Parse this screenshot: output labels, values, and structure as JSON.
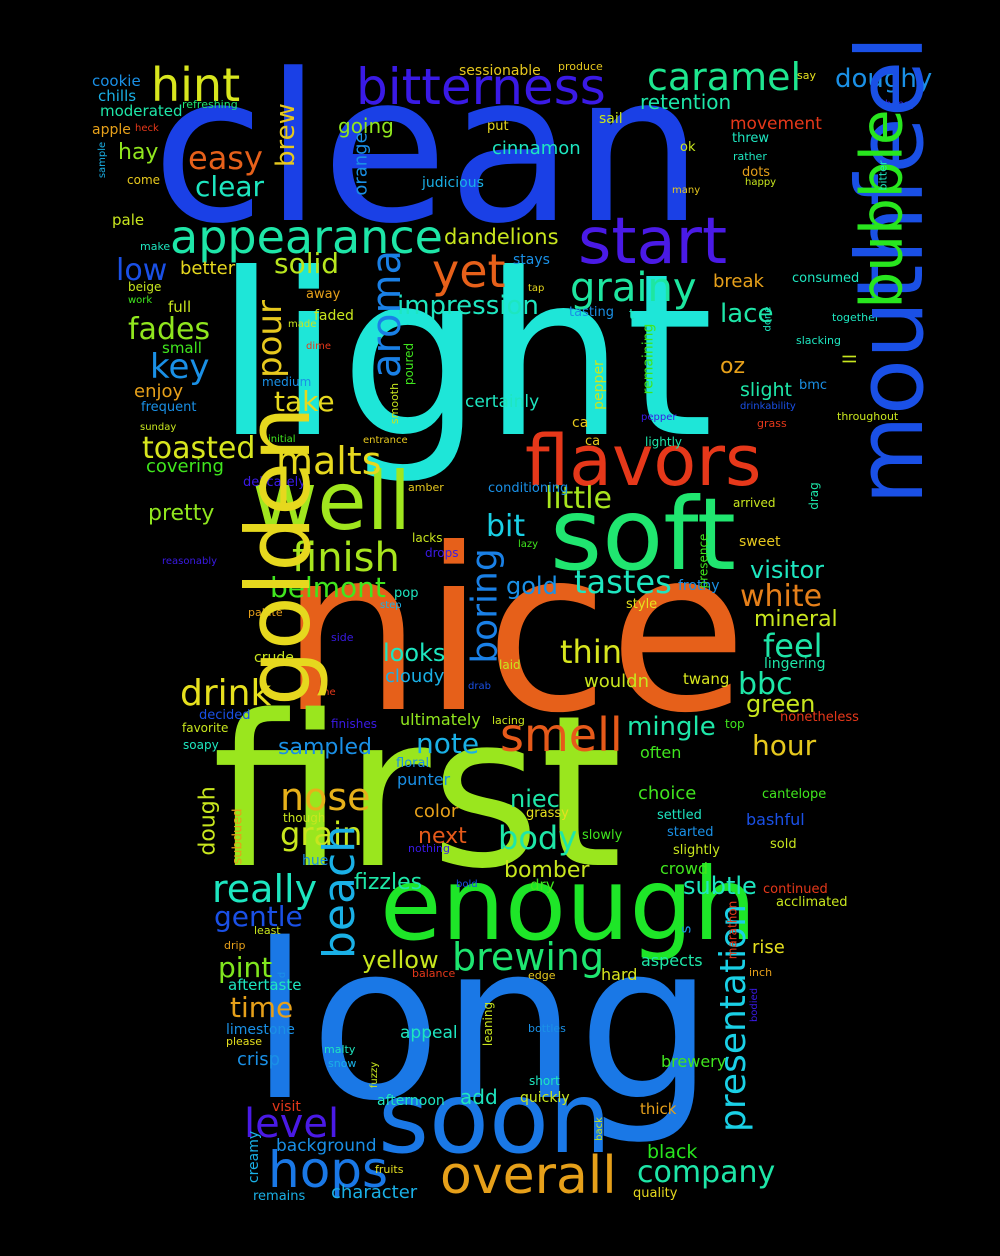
{
  "words": [
    {
      "text": "clean",
      "color": "#1a40e6"
    },
    {
      "text": "light",
      "color": "#1ee6d8"
    },
    {
      "text": "nice",
      "color": "#e6601a"
    },
    {
      "text": "first",
      "color": "#9ae61e"
    },
    {
      "text": "long",
      "color": "#1a78e6"
    },
    {
      "text": "enough",
      "color": "#1ee628"
    },
    {
      "text": "soft",
      "color": "#20e670"
    },
    {
      "text": "soon",
      "color": "#1a78e6"
    },
    {
      "text": "mouthfeel",
      "color": "#1a50e6"
    },
    {
      "text": "well",
      "color": "#e6d81e"
    },
    {
      "text": "golden",
      "color": "#a0e61e"
    },
    {
      "text": "flavors",
      "color": "#e6381a"
    },
    {
      "text": "bubble",
      "color": "#28e61e"
    },
    {
      "text": "start",
      "color": "#4a1ae6"
    },
    {
      "text": "bitterness",
      "color": "#3a1ae6"
    },
    {
      "text": "appearance",
      "color": "#1ee6a8"
    },
    {
      "text": "overall",
      "color": "#e6a01a"
    },
    {
      "text": "hops",
      "color": "#1a78e6"
    },
    {
      "text": "smell",
      "color": "#e65a1a"
    },
    {
      "text": "beach",
      "color": "#1ab0e6"
    },
    {
      "text": "brewing",
      "color": "#1ee670"
    },
    {
      "text": "presentation",
      "color": "#1ad0e6"
    },
    {
      "text": "caramel",
      "color": "#1ee690"
    },
    {
      "text": "hint",
      "color": "#d8e61e"
    },
    {
      "text": "aroma",
      "color": "#1a80e6"
    },
    {
      "text": "yet",
      "color": "#e6601a"
    },
    {
      "text": "grainy",
      "color": "#1ee6a0"
    },
    {
      "text": "finish",
      "color": "#a8e61e"
    },
    {
      "text": "malts",
      "color": "#e6d81e"
    },
    {
      "text": "boring",
      "color": "#1a80e6"
    },
    {
      "text": "drink",
      "color": "#e6e01e"
    },
    {
      "text": "nose",
      "color": "#e6b01a"
    },
    {
      "text": "really",
      "color": "#1ee6c0"
    },
    {
      "text": "level",
      "color": "#4a1ae6"
    },
    {
      "text": "company",
      "color": "#1ee6a8"
    },
    {
      "text": "toasted",
      "color": "#d8e61e"
    },
    {
      "text": "easy",
      "color": "#e6601a"
    },
    {
      "text": "clear",
      "color": "#1ee6c0"
    },
    {
      "text": "doughy",
      "color": "#1a90e6"
    },
    {
      "text": "low",
      "color": "#1a50e6"
    },
    {
      "text": "solid",
      "color": "#b8e61e"
    },
    {
      "text": "fades",
      "color": "#90e61e"
    },
    {
      "text": "key",
      "color": "#1a90e6"
    },
    {
      "text": "take",
      "color": "#e6d81e"
    },
    {
      "text": "tastes",
      "color": "#1ee6c0"
    },
    {
      "text": "thin",
      "color": "#d8e61e"
    },
    {
      "text": "belmont",
      "color": "#40e61e"
    },
    {
      "text": "white",
      "color": "#e6801a"
    },
    {
      "text": "feel",
      "color": "#1ee6a8"
    },
    {
      "text": "bbc",
      "color": "#1ee6a8"
    },
    {
      "text": "hour",
      "color": "#e6c81e"
    },
    {
      "text": "note",
      "color": "#1ab0e6"
    },
    {
      "text": "grain",
      "color": "#c8e61e"
    },
    {
      "text": "body",
      "color": "#1ee6a8"
    },
    {
      "text": "pint",
      "color": "#80e61e"
    },
    {
      "text": "time",
      "color": "#e6a01a"
    },
    {
      "text": "gentle",
      "color": "#1a50e6"
    },
    {
      "text": "green",
      "color": "#c8e61e"
    },
    {
      "text": "little",
      "color": "#a8e61e"
    },
    {
      "text": "bit",
      "color": "#1ad0e6"
    },
    {
      "text": "impression",
      "color": "#1ee6c0"
    },
    {
      "text": "pour",
      "color": "#e6c81e"
    },
    {
      "text": "brew",
      "color": "#e6c81e"
    },
    {
      "text": "retention",
      "color": "#1ee6a8"
    },
    {
      "text": "dandelions",
      "color": "#c8e61e"
    },
    {
      "text": "cinnamon",
      "color": "#1ee6c0"
    },
    {
      "text": "going",
      "color": "#90e61e"
    },
    {
      "text": "lace",
      "color": "#1ee6a8"
    },
    {
      "text": "oz",
      "color": "#e6a01a"
    },
    {
      "text": "mingle",
      "color": "#1ee6a8"
    },
    {
      "text": "looks",
      "color": "#1ee6c0"
    },
    {
      "text": "sampled",
      "color": "#1a90e6"
    },
    {
      "text": "dough",
      "color": "#c8e61e"
    },
    {
      "text": "niec",
      "color": "#1ee6a8"
    },
    {
      "text": "next",
      "color": "#e65a1a"
    },
    {
      "text": "bomber",
      "color": "#c8e61e"
    },
    {
      "text": "subtle",
      "color": "#1ee6c0"
    },
    {
      "text": "visitor",
      "color": "#1ee6c0"
    },
    {
      "text": "mineral",
      "color": "#c8e61e"
    },
    {
      "text": "gold",
      "color": "#1a90e6"
    },
    {
      "text": "yellow",
      "color": "#c8e61e"
    },
    {
      "text": "fizzles",
      "color": "#1ee6a8"
    },
    {
      "text": "hay",
      "color": "#90e61e"
    },
    {
      "text": "pretty",
      "color": "#90e61e"
    },
    {
      "text": "covering",
      "color": "#40e61e"
    },
    {
      "text": "movement",
      "color": "#e6381a"
    },
    {
      "text": "cloudy",
      "color": "#1ab0e6"
    },
    {
      "text": "orange",
      "color": "#1a90e6"
    },
    {
      "text": "certainly",
      "color": "#1ee6c0"
    },
    {
      "text": "ll",
      "color": "#c8e61e"
    },
    {
      "text": "slight",
      "color": "#1ee6a8"
    },
    {
      "text": "better",
      "color": "#e6d81e"
    },
    {
      "text": "enjoy",
      "color": "#e6a01a"
    },
    {
      "text": "break",
      "color": "#e6a01a"
    },
    {
      "text": "color",
      "color": "#e6a01a"
    },
    {
      "text": "choice",
      "color": "#40e61e"
    },
    {
      "text": "crowd",
      "color": "#40e61e"
    },
    {
      "text": "add",
      "color": "#1ee6c0"
    },
    {
      "text": "black",
      "color": "#28e61e"
    },
    {
      "text": "background",
      "color": "#1a90e6"
    },
    {
      "text": "character",
      "color": "#1ab0e6"
    },
    {
      "text": "crisp",
      "color": "#1a90e6"
    },
    {
      "text": "limestone",
      "color": "#1a90e6"
    },
    {
      "text": "appeal",
      "color": "#1ee6c0"
    },
    {
      "text": "brewery",
      "color": "#40e61e"
    },
    {
      "text": "ultimately",
      "color": "#90e61e"
    },
    {
      "text": "wouldn",
      "color": "#c8e61e"
    },
    {
      "text": "twang",
      "color": "#d8e61e"
    },
    {
      "text": "lingering",
      "color": "#1ee6a8"
    },
    {
      "text": "often",
      "color": "#40e61e"
    },
    {
      "text": "bashful",
      "color": "#1a50e6"
    },
    {
      "text": "aspects",
      "color": "#1ee6a8"
    },
    {
      "text": "hard",
      "color": "#d8e61e"
    },
    {
      "text": "afternoon",
      "color": "#1ee6c0"
    },
    {
      "text": "quickly",
      "color": "#c8e61e"
    },
    {
      "text": "thick",
      "color": "#e6a01a"
    },
    {
      "text": "quality",
      "color": "#e6d81e"
    },
    {
      "text": "remains",
      "color": "#1ab0e6"
    },
    {
      "text": "creamy",
      "color": "#1ab0e6"
    },
    {
      "text": "visit",
      "color": "#e6381a"
    },
    {
      "text": "cookie",
      "color": "#1a90e6"
    },
    {
      "text": "chills",
      "color": "#1ab0e6"
    },
    {
      "text": "moderated",
      "color": "#1ee6a8"
    },
    {
      "text": "apple",
      "color": "#e6a01a"
    },
    {
      "text": "sessionable",
      "color": "#e6c81e"
    },
    {
      "text": "produce",
      "color": "#e6c81e"
    },
    {
      "text": "say",
      "color": "#e6e01e"
    },
    {
      "text": "honey",
      "color": "#3a1ae6"
    },
    {
      "text": "refreshing",
      "color": "#1ee670"
    },
    {
      "text": "heck",
      "color": "#e6381a"
    },
    {
      "text": "sample",
      "color": "#1ab0e6"
    },
    {
      "text": "come",
      "color": "#e6c81e"
    },
    {
      "text": "pale",
      "color": "#c8e61e"
    },
    {
      "text": "make",
      "color": "#1ee6c0"
    },
    {
      "text": "beige",
      "color": "#c8e61e"
    },
    {
      "text": "work",
      "color": "#40e61e"
    },
    {
      "text": "full",
      "color": "#c8e61e"
    },
    {
      "text": "small",
      "color": "#40e61e"
    },
    {
      "text": "medium",
      "color": "#1a90e6"
    },
    {
      "text": "frequent",
      "color": "#1a90e6"
    },
    {
      "text": "sunday",
      "color": "#c8e61e"
    },
    {
      "text": "delicately",
      "color": "#3a1ae6"
    },
    {
      "text": "decided",
      "color": "#1a50e6"
    },
    {
      "text": "favorite",
      "color": "#c8e61e"
    },
    {
      "text": "soapy",
      "color": "#1ee6c0"
    },
    {
      "text": "reasonably",
      "color": "#3a1ae6"
    },
    {
      "text": "palate",
      "color": "#e6a01a"
    },
    {
      "text": "put",
      "color": "#e6d81e"
    },
    {
      "text": "sail",
      "color": "#c8e61e"
    },
    {
      "text": "ok",
      "color": "#c8e61e"
    },
    {
      "text": "threw",
      "color": "#1ee6c0"
    },
    {
      "text": "rather",
      "color": "#1ee6c0"
    },
    {
      "text": "dots",
      "color": "#e6a01a"
    },
    {
      "text": "happy",
      "color": "#c8e61e"
    },
    {
      "text": "many",
      "color": "#e6c81e"
    },
    {
      "text": "bitter",
      "color": "#1ee6c0"
    },
    {
      "text": "judicious",
      "color": "#1ab0e6"
    },
    {
      "text": "stays",
      "color": "#1a90e6"
    },
    {
      "text": "tap",
      "color": "#e6d81e"
    },
    {
      "text": "tasting",
      "color": "#1a90e6"
    },
    {
      "text": "t",
      "color": "#1ee6c0"
    },
    {
      "text": "away",
      "color": "#e6a01a"
    },
    {
      "text": "made",
      "color": "#c8e61e"
    },
    {
      "text": "faded",
      "color": "#c8e61e"
    },
    {
      "text": "dime",
      "color": "#e6381a"
    },
    {
      "text": "poured",
      "color": "#40e61e"
    },
    {
      "text": "smooth",
      "color": "#c8e61e"
    },
    {
      "text": "remaining",
      "color": "#40e61e"
    },
    {
      "text": "pepper",
      "color": "#c8e61e"
    },
    {
      "text": "ca",
      "color": "#e6c81e"
    },
    {
      "text": "lightly",
      "color": "#3a1ae6"
    },
    {
      "text": "initial",
      "color": "#e6c81e"
    },
    {
      "text": "entrance",
      "color": "#1ee6a8"
    },
    {
      "text": "consumed",
      "color": "#40e61e"
    },
    {
      "text": "together",
      "color": "#e6c81e"
    },
    {
      "text": "done",
      "color": "#1ee6c0"
    },
    {
      "text": "slacking",
      "color": "#1ee6c0"
    },
    {
      "text": "bmc",
      "color": "#1ee6c0"
    },
    {
      "text": "drinkability",
      "color": "#1ee6c0"
    },
    {
      "text": "throughout",
      "color": "#1a90e6"
    },
    {
      "text": "grass",
      "color": "#1a50e6"
    },
    {
      "text": "drag",
      "color": "#c8e61e"
    },
    {
      "text": "arrived",
      "color": "#e6381a"
    },
    {
      "text": "conditioning",
      "color": "#1ee6a8"
    },
    {
      "text": "amber",
      "color": "#c8e61e"
    },
    {
      "text": "lazy",
      "color": "#1a90e6"
    },
    {
      "text": "lacks",
      "color": "#e6c81e"
    },
    {
      "text": "drops",
      "color": "#40e61e"
    },
    {
      "text": "presence",
      "color": "#c8e61e"
    },
    {
      "text": "sweet",
      "color": "#3a1ae6"
    },
    {
      "text": "pop",
      "color": "#40e61e"
    },
    {
      "text": "step",
      "color": "#e6c81e"
    },
    {
      "text": "frothy",
      "color": "#1ee6c0"
    },
    {
      "text": "style",
      "color": "#1ab0e6"
    },
    {
      "text": "crude",
      "color": "#1a90e6"
    },
    {
      "text": "side",
      "color": "#e6e01e"
    },
    {
      "text": "laid",
      "color": "#c8e61e"
    },
    {
      "text": "drab",
      "color": "#3a1ae6"
    },
    {
      "text": "one",
      "color": "#c8e61e"
    },
    {
      "text": "finishes",
      "color": "#1a50e6"
    },
    {
      "text": "lacing",
      "color": "#e6381a"
    },
    {
      "text": "top",
      "color": "#3a1ae6"
    },
    {
      "text": "nonetheless",
      "color": "#c8e61e"
    },
    {
      "text": "floral",
      "color": "#40e61e"
    },
    {
      "text": "punter",
      "color": "#e6381a"
    },
    {
      "text": "cantelope",
      "color": "#1a90e6"
    },
    {
      "text": "though",
      "color": "#1a90e6"
    },
    {
      "text": "grassy",
      "color": "#40e61e"
    },
    {
      "text": "settled",
      "color": "#c8e61e"
    },
    {
      "text": "started",
      "color": "#e6e01e"
    },
    {
      "text": "subdued",
      "color": "#1ee6c0"
    },
    {
      "text": "nothing",
      "color": "#1a90e6"
    },
    {
      "text": "slowly",
      "color": "#e6a01a"
    },
    {
      "text": "slightly",
      "color": "#3a1ae6"
    },
    {
      "text": "sold",
      "color": "#40e61e"
    },
    {
      "text": "hue",
      "color": "#c8e61e"
    },
    {
      "text": "dry",
      "color": "#c8e61e"
    },
    {
      "text": "bold",
      "color": "#1a90e6"
    },
    {
      "text": "continued",
      "color": "#40e61e"
    },
    {
      "text": "acclimated",
      "color": "#1a50e6"
    },
    {
      "text": "least",
      "color": "#e6381a"
    },
    {
      "text": "s",
      "color": "#c8e61e"
    },
    {
      "text": "marathon",
      "color": "#c8e61e"
    },
    {
      "text": "rise",
      "color": "#1a90e6"
    },
    {
      "text": "drip",
      "color": "#e6381a"
    },
    {
      "text": "d",
      "color": "#e6e01e"
    },
    {
      "text": "balance",
      "color": "#e6a01a"
    },
    {
      "text": "edge",
      "color": "#1a90e6"
    },
    {
      "text": "aftertaste",
      "color": "#e6381a"
    },
    {
      "text": "inch",
      "color": "#e6c81e"
    },
    {
      "text": "please",
      "color": "#1ee6c0"
    },
    {
      "text": "malty",
      "color": "#e6a01a"
    },
    {
      "text": "leaning",
      "color": "#e6e01e"
    },
    {
      "text": "bottles",
      "color": "#1ee6c0"
    },
    {
      "text": "bodied",
      "color": "#c8e61e"
    },
    {
      "text": "snow",
      "color": "#1a90e6"
    },
    {
      "text": "fuzzy",
      "color": "#3a1ae6"
    },
    {
      "text": "short",
      "color": "#1ab0e6"
    },
    {
      "text": "back",
      "color": "#c8e61e"
    },
    {
      "text": "fruits",
      "color": "#1ee6c0"
    },
    {
      "text": "pear",
      "color": "#c8e61e"
    },
    {
      "text": "towards",
      "color": "#e6e01e"
    }
  ]
}
